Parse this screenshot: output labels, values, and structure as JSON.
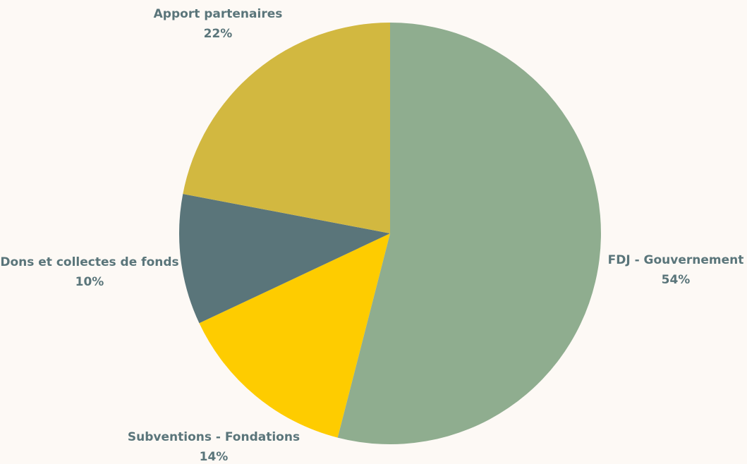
{
  "chart_data": {
    "type": "pie",
    "start": "top",
    "direction": "clockwise",
    "slices": [
      {
        "label": "FDJ - Gouvernement",
        "value": 54,
        "value_label": "54%",
        "color": "#8fad8f"
      },
      {
        "label": "Subventions - Fondations",
        "value": 14,
        "value_label": "14%",
        "color": "#fecc00"
      },
      {
        "label": "Dons et collectes de fonds",
        "value": 10,
        "value_label": "10%",
        "color": "#5a757a"
      },
      {
        "label": "Apport partenaires",
        "value": 22,
        "value_label": "22%",
        "color": "#d2b840"
      }
    ]
  }
}
